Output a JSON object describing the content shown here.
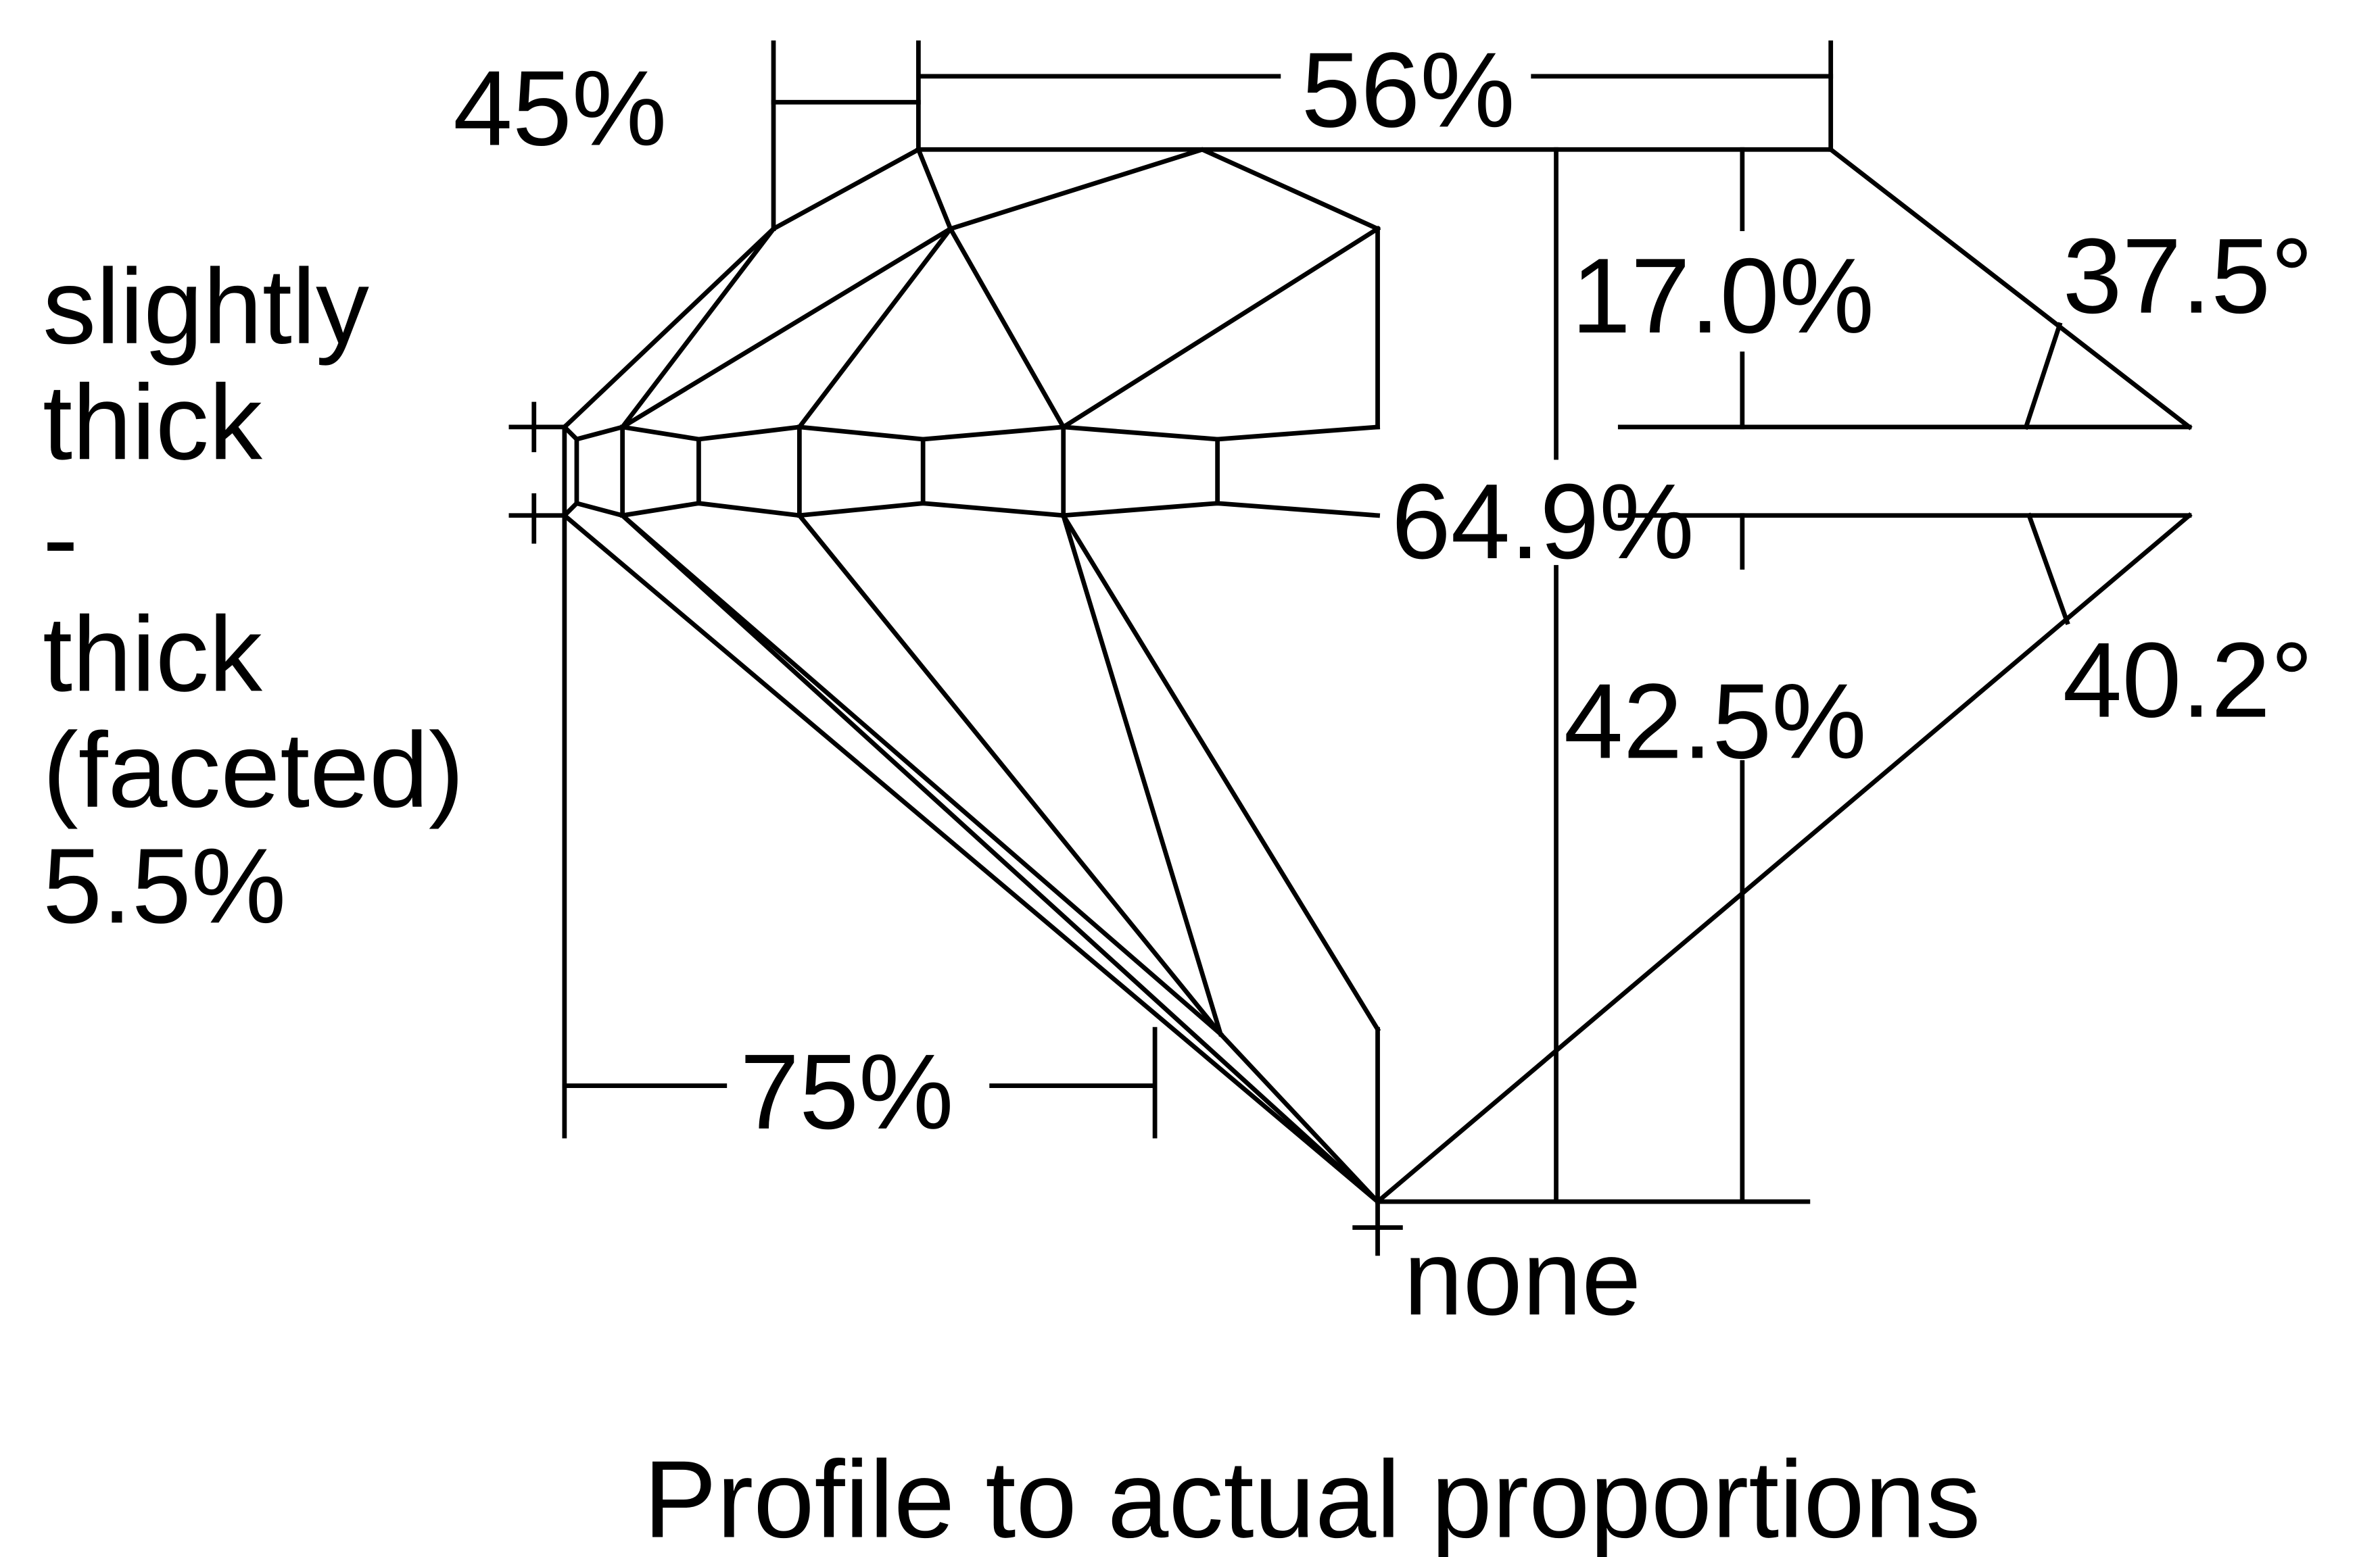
{
  "diagram": {
    "title": "Profile to actual proportions",
    "labels": {
      "crown_angle_offset": "45%",
      "table": "56%",
      "crown_height": "17.0%",
      "crown_angle": "37.5°",
      "total_depth": "64.9%",
      "pavilion_depth": "42.5%",
      "pavilion_angle": "40.2°",
      "lower_half": "75%",
      "culet": "none",
      "girdle_lines": [
        "slightly",
        "thick",
        "-",
        "thick",
        "(faceted)",
        "5.5%"
      ]
    },
    "line_color": "#000000",
    "background": "#ffffff"
  }
}
